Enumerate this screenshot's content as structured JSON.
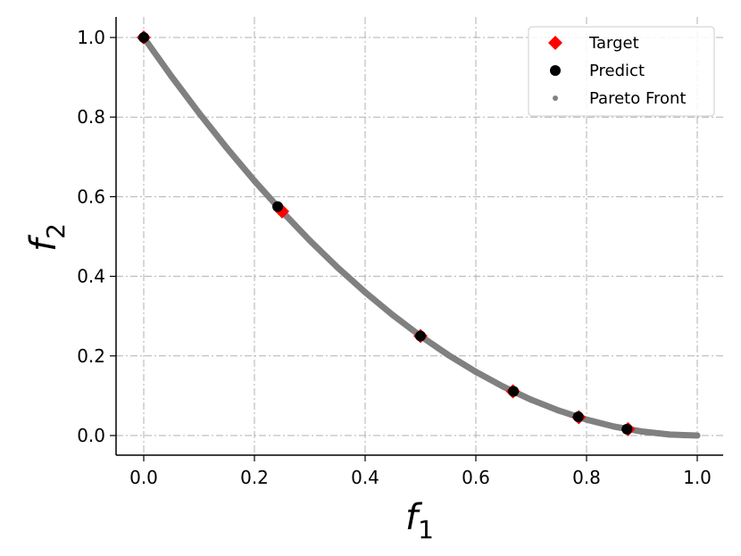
{
  "chart_data": {
    "type": "scatter",
    "title": "",
    "xlabel": {
      "base": "f",
      "sub": "1"
    },
    "ylabel": {
      "base": "f",
      "sub": "2"
    },
    "xlim": [
      -0.05,
      1.05
    ],
    "ylim": [
      -0.05,
      1.05
    ],
    "x_ticks": [
      0.0,
      0.2,
      0.4,
      0.6,
      0.8,
      1.0
    ],
    "y_ticks": [
      0.0,
      0.2,
      0.4,
      0.6,
      0.8,
      1.0
    ],
    "x_tick_labels": [
      "0.0",
      "0.2",
      "0.4",
      "0.6",
      "0.8",
      "1.0"
    ],
    "y_tick_labels": [
      "0.0",
      "0.2",
      "0.4",
      "0.6",
      "0.8",
      "1.0"
    ],
    "grid": true,
    "legend_position": "top-right",
    "series": [
      {
        "name": "Target",
        "marker": "diamond",
        "color": "#ff0000",
        "x": [
          0.0,
          0.25,
          0.5,
          0.667,
          0.786,
          0.875
        ],
        "y": [
          1.0,
          0.563,
          0.25,
          0.111,
          0.046,
          0.016
        ]
      },
      {
        "name": "Predict",
        "marker": "circle",
        "color": "#000000",
        "x": [
          0.0,
          0.242,
          0.5,
          0.668,
          0.785,
          0.873
        ],
        "y": [
          1.0,
          0.575,
          0.25,
          0.111,
          0.047,
          0.016
        ]
      },
      {
        "name": "Pareto Front",
        "marker": "dot",
        "color": "#808080",
        "curve": "f2 = (1 - f1)^2",
        "x": [
          0.0,
          0.05,
          0.1,
          0.15,
          0.2,
          0.25,
          0.3,
          0.35,
          0.4,
          0.45,
          0.5,
          0.55,
          0.6,
          0.65,
          0.7,
          0.75,
          0.8,
          0.85,
          0.9,
          0.95,
          1.0
        ],
        "y": [
          1.0,
          0.9025,
          0.81,
          0.7225,
          0.64,
          0.5625,
          0.49,
          0.4225,
          0.36,
          0.3025,
          0.25,
          0.2025,
          0.16,
          0.1225,
          0.09,
          0.0625,
          0.04,
          0.0225,
          0.01,
          0.0025,
          0.0
        ]
      }
    ]
  }
}
